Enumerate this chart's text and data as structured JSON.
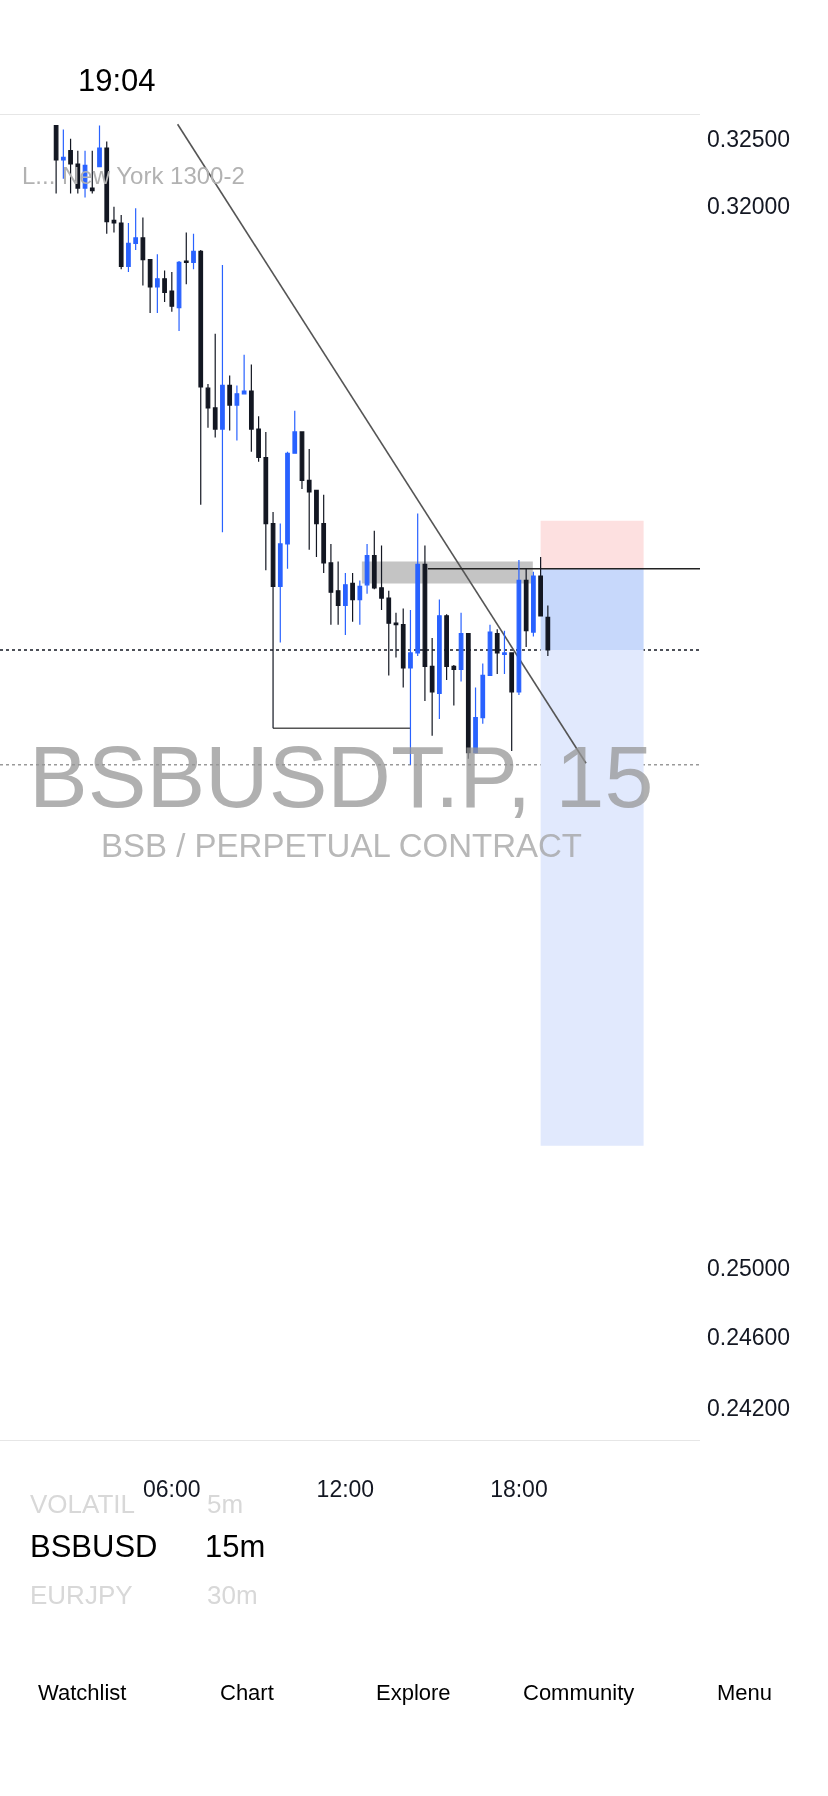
{
  "chart_data": {
    "type": "candlestick",
    "title": "BSBUSDT.P, 15",
    "subtitle": "BSB / PERPETUAL CONTRACT",
    "x": [
      2.0,
      2.25,
      2.5,
      2.75,
      3.0,
      3.25,
      3.5,
      3.75,
      4.0,
      4.25,
      4.5,
      4.75,
      5.0,
      5.25,
      5.5,
      5.75,
      6.0,
      6.25,
      6.5,
      6.75,
      7.0,
      7.25,
      7.5,
      7.75,
      8.0,
      8.25,
      8.5,
      8.75,
      9.0,
      9.25,
      9.5,
      9.75,
      10.0,
      10.25,
      10.5,
      10.75,
      11.0,
      11.25,
      11.5,
      11.75,
      12.0,
      12.25,
      12.5,
      12.75,
      13.0,
      13.25,
      13.5,
      13.75,
      14.0,
      14.25,
      14.5,
      14.75,
      15.0,
      15.25,
      15.5,
      15.75,
      16.0,
      16.25,
      16.5,
      16.75,
      17.0,
      17.25,
      17.5,
      17.75,
      18.0,
      18.25,
      18.5,
      18.75,
      19.0
    ],
    "ohlc": [
      [
        0.326,
        0.326,
        0.3209,
        0.3234
      ],
      [
        0.3234,
        0.3257,
        0.322,
        0.3236
      ],
      [
        0.3241,
        0.325,
        0.3209,
        0.3231
      ],
      [
        0.3231,
        0.3241,
        0.3209,
        0.3213
      ],
      [
        0.3213,
        0.3241,
        0.3206,
        0.323
      ],
      [
        0.3213,
        0.3241,
        0.3209,
        0.3211
      ],
      [
        0.3229,
        0.326,
        0.3229,
        0.3243
      ],
      [
        0.3243,
        0.3248,
        0.3179,
        0.3188
      ],
      [
        0.3189,
        0.3199,
        0.318,
        0.3187
      ],
      [
        0.3187,
        0.3193,
        0.3153,
        0.3155
      ],
      [
        0.3155,
        0.3187,
        0.3151,
        0.3172
      ],
      [
        0.3172,
        0.3198,
        0.3167,
        0.3176
      ],
      [
        0.3176,
        0.3191,
        0.3141,
        0.316
      ],
      [
        0.316,
        0.316,
        0.3121,
        0.314
      ],
      [
        0.314,
        0.3164,
        0.3121,
        0.3146
      ],
      [
        0.3146,
        0.3152,
        0.3129,
        0.3136
      ],
      [
        0.3137,
        0.3151,
        0.3122,
        0.3126
      ],
      [
        0.3125,
        0.3159,
        0.3108,
        0.3158
      ],
      [
        0.3159,
        0.318,
        0.3142,
        0.3158
      ],
      [
        0.3158,
        0.3179,
        0.3153,
        0.3166
      ],
      [
        0.3166,
        0.3167,
        0.2985,
        0.3068
      ],
      [
        0.3067,
        0.307,
        0.3039,
        0.3053
      ],
      [
        0.3053,
        0.3106,
        0.3032,
        0.3038
      ],
      [
        0.3038,
        0.3156,
        0.2966,
        0.3069
      ],
      [
        0.3069,
        0.3076,
        0.3037,
        0.3055
      ],
      [
        0.3055,
        0.3069,
        0.303,
        0.3063
      ],
      [
        0.3063,
        0.3091,
        0.3063,
        0.3065
      ],
      [
        0.3065,
        0.3084,
        0.3022,
        0.3038
      ],
      [
        0.3038,
        0.3047,
        0.3015,
        0.3018
      ],
      [
        0.3018,
        0.3036,
        0.294,
        0.2972
      ],
      [
        0.2972,
        0.298,
        0.2834,
        0.2929
      ],
      [
        0.2929,
        0.2972,
        0.2891,
        0.2958
      ],
      [
        0.2958,
        0.3022,
        0.2941,
        0.3021
      ],
      [
        0.3021,
        0.3051,
        0.3021,
        0.3036
      ],
      [
        0.3036,
        0.3036,
        0.2996,
        0.3002
      ],
      [
        0.3002,
        0.3024,
        0.2954,
        0.2994
      ],
      [
        0.2995,
        0.2995,
        0.2949,
        0.2972
      ],
      [
        0.2972,
        0.2992,
        0.2938,
        0.2945
      ],
      [
        0.2945,
        0.2958,
        0.2903,
        0.2925
      ],
      [
        0.2926,
        0.2946,
        0.2903,
        0.2916
      ],
      [
        0.2916,
        0.2938,
        0.2896,
        0.293
      ],
      [
        0.2931,
        0.2938,
        0.2905,
        0.292
      ],
      [
        0.292,
        0.2933,
        0.2903,
        0.2929
      ],
      [
        0.293,
        0.2958,
        0.2924,
        0.295
      ],
      [
        0.295,
        0.2967,
        0.2927,
        0.2928
      ],
      [
        0.2928,
        0.2957,
        0.2913,
        0.2921
      ],
      [
        0.2921,
        0.2926,
        0.2869,
        0.2904
      ],
      [
        0.2904,
        0.2911,
        0.2881,
        0.2903
      ],
      [
        0.2903,
        0.2914,
        0.2861,
        0.2874
      ],
      [
        0.2874,
        0.2913,
        0.281,
        0.2884
      ],
      [
        0.2884,
        0.2979,
        0.2882,
        0.2944
      ],
      [
        0.2944,
        0.2957,
        0.2852,
        0.2875
      ],
      [
        0.2875,
        0.2894,
        0.2829,
        0.2858
      ],
      [
        0.2857,
        0.292,
        0.284,
        0.2909
      ],
      [
        0.2909,
        0.291,
        0.2866,
        0.2875
      ],
      [
        0.2875,
        0.2876,
        0.2849,
        0.2873
      ],
      [
        0.2873,
        0.2911,
        0.2865,
        0.2897
      ],
      [
        0.2897,
        0.2897,
        0.2814,
        0.2818
      ],
      [
        0.2818,
        0.2861,
        0.2818,
        0.2841
      ],
      [
        0.2841,
        0.2877,
        0.2837,
        0.2869
      ],
      [
        0.2869,
        0.2903,
        0.2869,
        0.2898
      ],
      [
        0.2897,
        0.29,
        0.287,
        0.2884
      ],
      [
        0.2883,
        0.2899,
        0.287,
        0.2884
      ],
      [
        0.2884,
        0.2884,
        0.2819,
        0.2858
      ],
      [
        0.2858,
        0.2947,
        0.2856,
        0.2933
      ],
      [
        0.2933,
        0.2941,
        0.2888,
        0.2899
      ],
      [
        0.2898,
        0.2939,
        0.2895,
        0.2936
      ],
      [
        0.2936,
        0.2949,
        0.2909,
        0.2909
      ],
      [
        0.2908,
        0.2916,
        0.2882,
        0.2886
      ]
    ],
    "colors": [
      "#131722",
      "#2962ff",
      "#131722",
      "#131722",
      "#2962ff",
      "#131722",
      "#2962ff",
      "#131722",
      "#131722",
      "#131722",
      "#2962ff",
      "#2962ff",
      "#131722",
      "#131722",
      "#2962ff",
      "#131722",
      "#131722",
      "#2962ff",
      "#131722",
      "#2962ff",
      "#131722",
      "#131722",
      "#131722",
      "#2962ff",
      "#131722",
      "#2962ff",
      "#2962ff",
      "#131722",
      "#131722",
      "#131722",
      "#131722",
      "#2962ff",
      "#2962ff",
      "#2962ff",
      "#131722",
      "#131722",
      "#131722",
      "#131722",
      "#131722",
      "#131722",
      "#2962ff",
      "#131722",
      "#2962ff",
      "#2962ff",
      "#131722",
      "#131722",
      "#131722",
      "#131722",
      "#131722",
      "#2962ff",
      "#2962ff",
      "#131722",
      "#131722",
      "#2962ff",
      "#131722",
      "#131722",
      "#2962ff",
      "#131722",
      "#2962ff",
      "#2962ff",
      "#2962ff",
      "#131722",
      "#2962ff",
      "#131722",
      "#2962ff",
      "#131722",
      "#2962ff",
      "#131722",
      "#131722"
    ],
    "series": [
      {
        "type": "area",
        "x": [
          18.75,
          22.31
        ],
        "values": [
          null,
          null
        ],
        "upper": [
          0.2974,
          0.2974
        ],
        "lower": [
          0.2941,
          0.2941
        ],
        "color": "#fde0e0"
      },
      {
        "type": "area",
        "x": [
          18.75,
          22.31
        ],
        "values": [
          null,
          null
        ],
        "upper": [
          0.2941,
          0.2941
        ],
        "lower": [
          0.2886,
          0.2886
        ],
        "color": "#c7d8fb"
      },
      {
        "type": "area",
        "x": [
          18.75,
          22.31
        ],
        "values": [
          null,
          null
        ],
        "upper": [
          0.2886,
          0.2886
        ],
        "lower": [
          0.2572,
          0.2572
        ],
        "color": "#e1e9fd"
      },
      {
        "type": "area",
        "x": [
          12.57,
          18.48
        ],
        "values": [
          null,
          null
        ],
        "upper": [
          0.2946,
          0.2946
        ],
        "lower": [
          0.2931,
          0.2931
        ],
        "color": "#c4c4c4"
      },
      {
        "type": "line",
        "x": [
          6.2,
          20.32
        ],
        "values": [
          0.3261,
          0.2811
        ],
        "color": "#555555",
        "line_style": "solid"
      },
      {
        "type": "line",
        "x": [
          9.5,
          14.24
        ],
        "values": [
          0.2834,
          0.2834
        ],
        "color": "#555555",
        "line_style": "solid"
      },
      {
        "type": "line",
        "x": [
          14.85,
          24.26
        ],
        "values": [
          0.2941,
          0.2941
        ],
        "color": "#222222",
        "line_style": "solid"
      }
    ],
    "ref_lines": [
      {
        "axis": "y",
        "value": 0.2886,
        "color": "#131722",
        "line_style": "dotted"
      },
      {
        "axis": "y",
        "value": 0.281,
        "color": "#9a9a9a",
        "line_style": "dotted"
      }
    ],
    "xlim": [
      0.06,
      24.26
    ],
    "xticks": [
      {
        "value": 6,
        "label": "06:00"
      },
      {
        "value": 12,
        "label": "12:00"
      },
      {
        "value": 18,
        "label": "18:00"
      }
    ],
    "ylim": [
      0.2402,
      0.3268
    ],
    "yticks": [
      {
        "value": 0.325,
        "label": "0.32500"
      },
      {
        "value": 0.32,
        "label": "0.32000"
      },
      {
        "value": 0.25,
        "label": "0.25000"
      },
      {
        "value": 0.246,
        "label": "0.24600"
      },
      {
        "value": 0.242,
        "label": "0.24200"
      }
    ],
    "log": "y",
    "grid": false,
    "annotations": [
      "L... New York 1300-2",
      "19:04",
      "VOLATIL",
      "5m",
      "BSBUSD",
      "15m",
      "EURJPY",
      "30m",
      "Watchlist",
      "Chart",
      "Explore",
      "Community",
      "Menu"
    ]
  }
}
